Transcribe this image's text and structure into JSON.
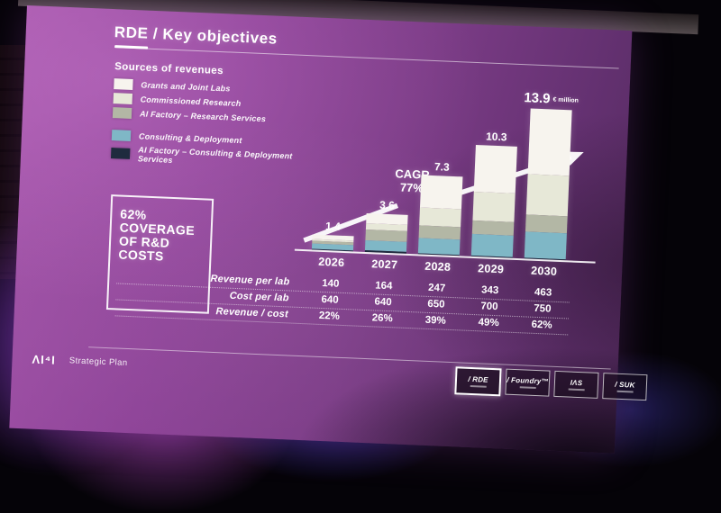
{
  "slide": {
    "title_prefix": "RDE",
    "title_suffix": " / Key objectives",
    "legend_title": "Sources of revenues",
    "callout": {
      "l1": "62%",
      "l2": "COVERAGE",
      "l3": "OF R&D",
      "l4": "COSTS"
    },
    "footer": {
      "logo": "ΛI⁴I",
      "label": "Strategic Plan"
    },
    "brand_boxes": [
      {
        "label": "/ RDE",
        "active": true
      },
      {
        "label": "/ Foundry™",
        "active": false
      },
      {
        "label": "IΛS",
        "active": false
      },
      {
        "label": "/ SUK",
        "active": false
      }
    ],
    "accent_color": "#8e4398"
  },
  "chart_data": {
    "type": "stacked-bar",
    "title": "Sources of revenues",
    "unit": "€ million",
    "categories": [
      "2026",
      "2027",
      "2028",
      "2029",
      "2030"
    ],
    "totals": [
      1.4,
      3.6,
      7.3,
      10.3,
      13.9
    ],
    "cagr_label": "CAGR",
    "cagr_value": "77%",
    "ylim": [
      0,
      14
    ],
    "legend_position": "top-left",
    "grid": false,
    "series": [
      {
        "name": "Grants and Joint Labs",
        "color": "#f7f4ee",
        "values": [
          0.4,
          0.9,
          3.0,
          4.3,
          6.1
        ]
      },
      {
        "name": "Commissioned Research",
        "color": "#e7e8d8",
        "values": [
          0.2,
          0.6,
          1.6,
          2.7,
          3.7
        ]
      },
      {
        "name": "AI Factory – Research Services",
        "color": "#b3b7a5",
        "values": [
          0.25,
          1.0,
          1.2,
          1.2,
          1.6
        ]
      },
      {
        "name": "Consulting & Deployment",
        "color": "#7fb7c6",
        "values": [
          0.45,
          0.9,
          1.4,
          2.0,
          2.4
        ]
      },
      {
        "name": "AI Factory – Consulting & Deployment Services",
        "color": "#1f2b3e",
        "values": [
          0.1,
          0.2,
          0.1,
          0.1,
          0.1
        ]
      }
    ]
  },
  "table": {
    "rows": [
      {
        "label": "Revenue per lab",
        "values": [
          "140",
          "164",
          "247",
          "343",
          "463"
        ]
      },
      {
        "label": "Cost per lab",
        "values": [
          "640",
          "640",
          "650",
          "700",
          "750"
        ]
      },
      {
        "label": "Revenue / cost",
        "values": [
          "22%",
          "26%",
          "39%",
          "49%",
          "62%"
        ]
      }
    ]
  }
}
